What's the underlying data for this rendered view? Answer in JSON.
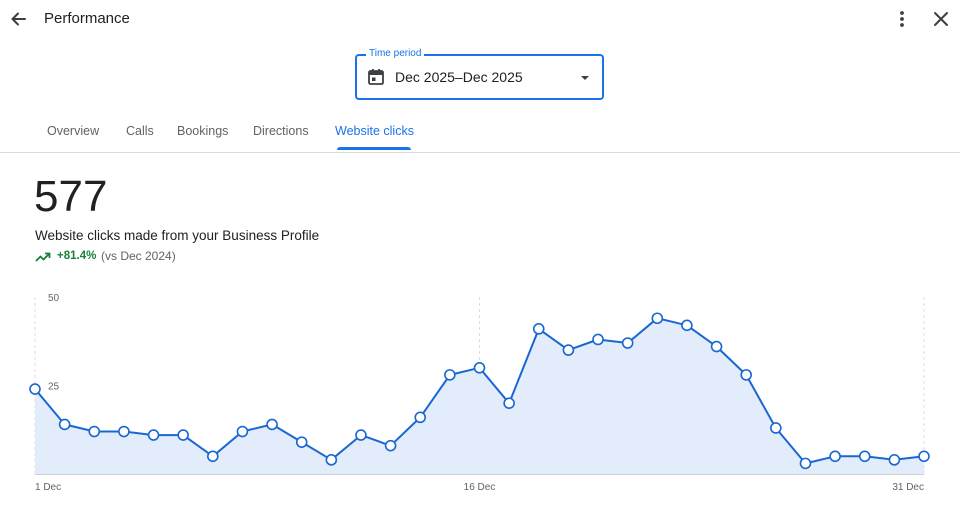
{
  "header": {
    "title": "Performance",
    "back_icon": "arrow-back-icon",
    "more_icon": "more-vert-icon",
    "close_icon": "close-icon"
  },
  "time_period": {
    "label": "Time period",
    "value": "Dec 2025–Dec 2025",
    "icon": "calendar-icon"
  },
  "tabs": [
    {
      "label": "Overview",
      "active": false
    },
    {
      "label": "Calls",
      "active": false
    },
    {
      "label": "Bookings",
      "active": false
    },
    {
      "label": "Directions",
      "active": false
    },
    {
      "label": "Website clicks",
      "active": true
    }
  ],
  "summary": {
    "total": "577",
    "description": "Website clicks made from your Business Profile",
    "change": "+81.4%",
    "comparison": "(vs Dec 2024)"
  },
  "colors": {
    "accent": "#1a73e8",
    "line": "#1967d2",
    "area": "#e3ecfa",
    "positive": "#188038"
  },
  "chart_data": {
    "type": "area",
    "x": [
      "1 Dec",
      "2 Dec",
      "3 Dec",
      "4 Dec",
      "5 Dec",
      "6 Dec",
      "7 Dec",
      "8 Dec",
      "9 Dec",
      "10 Dec",
      "11 Dec",
      "12 Dec",
      "13 Dec",
      "14 Dec",
      "15 Dec",
      "16 Dec",
      "17 Dec",
      "18 Dec",
      "19 Dec",
      "20 Dec",
      "21 Dec",
      "22 Dec",
      "23 Dec",
      "24 Dec",
      "25 Dec",
      "26 Dec",
      "27 Dec",
      "28 Dec",
      "29 Dec",
      "30 Dec",
      "31 Dec"
    ],
    "values": [
      24,
      14,
      12,
      12,
      11,
      11,
      5,
      12,
      14,
      9,
      4,
      11,
      8,
      16,
      28,
      30,
      20,
      41,
      35,
      38,
      37,
      44,
      42,
      36,
      28,
      13,
      3,
      5,
      5,
      4,
      5
    ],
    "ylim": [
      0,
      50
    ],
    "y_ticks": [
      "50",
      "25"
    ],
    "x_ticks": [
      "1 Dec",
      "16 Dec",
      "31 Dec"
    ],
    "grid": "vertical dashed at tick dates"
  }
}
